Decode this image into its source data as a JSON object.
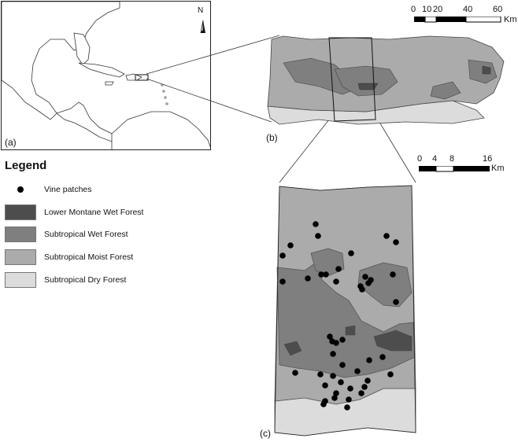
{
  "panels": {
    "a": "(a)",
    "b": "(b)",
    "c": "(c)"
  },
  "north_arrow": {
    "label": "N"
  },
  "scale_bar_b": {
    "ticks": [
      "0",
      "10",
      "20",
      "40",
      "60"
    ],
    "unit": "Km"
  },
  "scale_bar_c": {
    "ticks": [
      "0",
      "4",
      "8",
      "16"
    ],
    "unit": "Km"
  },
  "legend": {
    "title": "Legend",
    "items": [
      {
        "label": "Vine patches",
        "symbol": "dot",
        "color": "#000000"
      },
      {
        "label": "Lower Montane Wet Forest",
        "symbol": "fill",
        "color": "#4d4d4d"
      },
      {
        "label": "Subtropical Wet Forest",
        "symbol": "fill",
        "color": "#7f7f7f"
      },
      {
        "label": "Subtropical Moist Forest",
        "symbol": "fill",
        "color": "#ababab"
      },
      {
        "label": "Subtropical Dry Forest",
        "symbol": "fill",
        "color": "#dcdcdc"
      }
    ]
  },
  "colors": {
    "lower_montane": "#4d4d4d",
    "wet": "#7f7f7f",
    "moist": "#ababab",
    "dry": "#dcdcdc",
    "land_context": "#ffffff",
    "border": "#222222"
  }
}
